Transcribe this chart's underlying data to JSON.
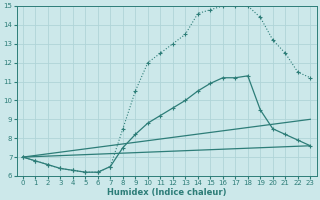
{
  "xlabel": "Humidex (Indice chaleur)",
  "ylabel": "",
  "xlim": [
    -0.5,
    23.5
  ],
  "ylim": [
    6,
    15
  ],
  "yticks": [
    6,
    7,
    8,
    9,
    10,
    11,
    12,
    13,
    14,
    15
  ],
  "xticks": [
    0,
    1,
    2,
    3,
    4,
    5,
    6,
    7,
    8,
    9,
    10,
    11,
    12,
    13,
    14,
    15,
    16,
    17,
    18,
    19,
    20,
    21,
    22,
    23
  ],
  "background_color": "#cce8ea",
  "grid_color": "#b0d4d8",
  "line_color": "#2d7d78",
  "lines": [
    {
      "x": [
        0,
        1,
        2,
        3,
        4,
        5,
        6,
        7,
        8,
        9,
        10,
        11,
        12,
        13,
        14,
        15,
        16,
        17,
        18,
        19,
        20,
        21,
        22,
        23
      ],
      "y": [
        7.0,
        6.8,
        6.6,
        6.4,
        6.3,
        6.2,
        6.2,
        6.5,
        8.5,
        10.5,
        12.0,
        12.5,
        13.0,
        13.5,
        14.6,
        14.8,
        15.0,
        15.0,
        15.0,
        14.4,
        13.2,
        12.5,
        11.5,
        11.2
      ],
      "marker": "+",
      "markersize": 3.5,
      "linewidth": 0.8,
      "linestyle": ":"
    },
    {
      "x": [
        0,
        1,
        2,
        3,
        4,
        5,
        6,
        7,
        8,
        9,
        10,
        11,
        12,
        13,
        14,
        15,
        16,
        17,
        18,
        19,
        20,
        21,
        22,
        23
      ],
      "y": [
        7.0,
        6.8,
        6.6,
        6.4,
        6.3,
        6.2,
        6.2,
        6.5,
        7.5,
        8.2,
        8.8,
        9.2,
        9.6,
        10.0,
        10.5,
        10.9,
        11.2,
        11.2,
        11.3,
        9.5,
        8.5,
        8.2,
        7.9,
        7.6
      ],
      "marker": "+",
      "markersize": 3.5,
      "linewidth": 0.9,
      "linestyle": "-"
    },
    {
      "x": [
        0,
        23
      ],
      "y": [
        7.0,
        9.0
      ],
      "marker": null,
      "markersize": 0,
      "linewidth": 0.9,
      "linestyle": "-"
    },
    {
      "x": [
        0,
        23
      ],
      "y": [
        7.0,
        7.6
      ],
      "marker": null,
      "markersize": 0,
      "linewidth": 0.9,
      "linestyle": "-"
    }
  ]
}
